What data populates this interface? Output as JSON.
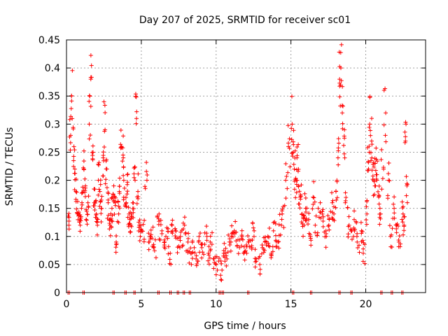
{
  "chart_data": {
    "type": "scatter",
    "title": "Day 207 of 2025, SRMTID for receiver sc01",
    "xlabel": "GPS time / hours",
    "ylabel": "SRMTID / TECUs",
    "xlim": [
      0,
      24
    ],
    "ylim": [
      0,
      0.45
    ],
    "xticks": [
      0,
      5,
      10,
      15,
      20
    ],
    "yticks": [
      0,
      0.05,
      0.1,
      0.15,
      0.2,
      0.25,
      0.3,
      0.35,
      0.4,
      0.45
    ],
    "grid": true,
    "marker": "+",
    "color": "#ff0000",
    "series": [
      {
        "name": "sc01",
        "x": [
          0.1,
          0.2,
          0.3,
          0.4,
          0.5,
          0.6,
          0.7,
          0.8,
          0.9,
          1.0,
          1.1,
          1.2,
          1.3,
          1.4,
          1.5,
          1.6,
          1.7,
          1.8,
          1.9,
          2.0,
          2.1,
          2.2,
          2.3,
          2.4,
          2.5,
          2.6,
          2.7,
          2.8,
          2.9,
          3.0,
          3.1,
          3.2,
          3.3,
          3.4,
          3.5,
          3.6,
          3.7,
          3.8,
          3.9,
          4.0,
          4.1,
          4.2,
          4.3,
          4.4,
          4.5,
          4.6,
          4.7,
          4.8,
          4.9,
          5.0,
          5.2,
          5.4,
          5.6,
          5.8,
          6.0,
          6.2,
          6.4,
          6.6,
          6.8,
          7.0,
          7.2,
          7.4,
          7.6,
          7.8,
          8.0,
          8.2,
          8.4,
          8.6,
          8.8,
          9.0,
          9.2,
          9.4,
          9.6,
          9.8,
          10.0,
          10.2,
          10.4,
          10.6,
          10.8,
          11.0,
          11.2,
          11.4,
          11.6,
          11.8,
          12.0,
          12.2,
          12.4,
          12.6,
          12.8,
          13.0,
          13.2,
          13.4,
          13.6,
          13.8,
          14.0,
          14.2,
          14.4,
          14.6,
          14.8,
          15.0,
          15.1,
          15.2,
          15.3,
          15.4,
          15.5,
          15.6,
          15.7,
          15.8,
          15.9,
          16.0,
          16.2,
          16.4,
          16.6,
          16.8,
          17.0,
          17.2,
          17.4,
          17.6,
          17.8,
          18.0,
          18.1,
          18.2,
          18.3,
          18.4,
          18.5,
          18.6,
          18.8,
          19.0,
          19.2,
          19.4,
          19.6,
          19.8,
          20.0,
          20.1,
          20.2,
          20.3,
          20.4,
          20.5,
          20.6,
          20.7,
          20.8,
          20.9,
          21.0,
          21.2,
          21.4,
          21.6,
          21.8,
          22.0,
          22.2,
          22.4,
          22.5,
          22.6,
          22.7
        ],
        "y": [
          0.12,
          0.28,
          0.35,
          0.26,
          0.22,
          0.18,
          0.14,
          0.13,
          0.12,
          0.16,
          0.22,
          0.19,
          0.13,
          0.16,
          0.3,
          0.38,
          0.25,
          0.16,
          0.14,
          0.12,
          0.2,
          0.18,
          0.15,
          0.24,
          0.29,
          0.22,
          0.16,
          0.13,
          0.12,
          0.15,
          0.19,
          0.16,
          0.09,
          0.14,
          0.18,
          0.26,
          0.24,
          0.2,
          0.16,
          0.21,
          0.14,
          0.13,
          0.12,
          0.16,
          0.2,
          0.31,
          0.18,
          0.12,
          0.1,
          0.11,
          0.2,
          0.09,
          0.1,
          0.08,
          0.14,
          0.11,
          0.09,
          0.1,
          0.07,
          0.12,
          0.11,
          0.08,
          0.1,
          0.12,
          0.09,
          0.07,
          0.08,
          0.06,
          0.09,
          0.08,
          0.1,
          0.07,
          0.09,
          0.06,
          0.05,
          0.04,
          0.07,
          0.06,
          0.09,
          0.1,
          0.11,
          0.08,
          0.1,
          0.07,
          0.09,
          0.08,
          0.11,
          0.06,
          0.05,
          0.08,
          0.09,
          0.1,
          0.07,
          0.11,
          0.09,
          0.12,
          0.14,
          0.2,
          0.26,
          0.3,
          0.25,
          0.22,
          0.2,
          0.24,
          0.19,
          0.17,
          0.14,
          0.12,
          0.15,
          0.13,
          0.1,
          0.17,
          0.12,
          0.15,
          0.14,
          0.1,
          0.12,
          0.16,
          0.14,
          0.18,
          0.24,
          0.38,
          0.4,
          0.32,
          0.29,
          0.16,
          0.12,
          0.1,
          0.13,
          0.09,
          0.11,
          0.07,
          0.14,
          0.22,
          0.3,
          0.27,
          0.24,
          0.2,
          0.23,
          0.21,
          0.17,
          0.14,
          0.22,
          0.32,
          0.2,
          0.1,
          0.15,
          0.12,
          0.09,
          0.14,
          0.12,
          0.27,
          0.19
        ],
        "zero_x": [
          0.1,
          1.1,
          3.1,
          3.9,
          4.5,
          6.1,
          6.9,
          7.4,
          7.8,
          8.2,
          10.2,
          10.4,
          12.1,
          15.1,
          16.3,
          18.2,
          19.0,
          21.0,
          21.7,
          22.4
        ]
      }
    ]
  }
}
